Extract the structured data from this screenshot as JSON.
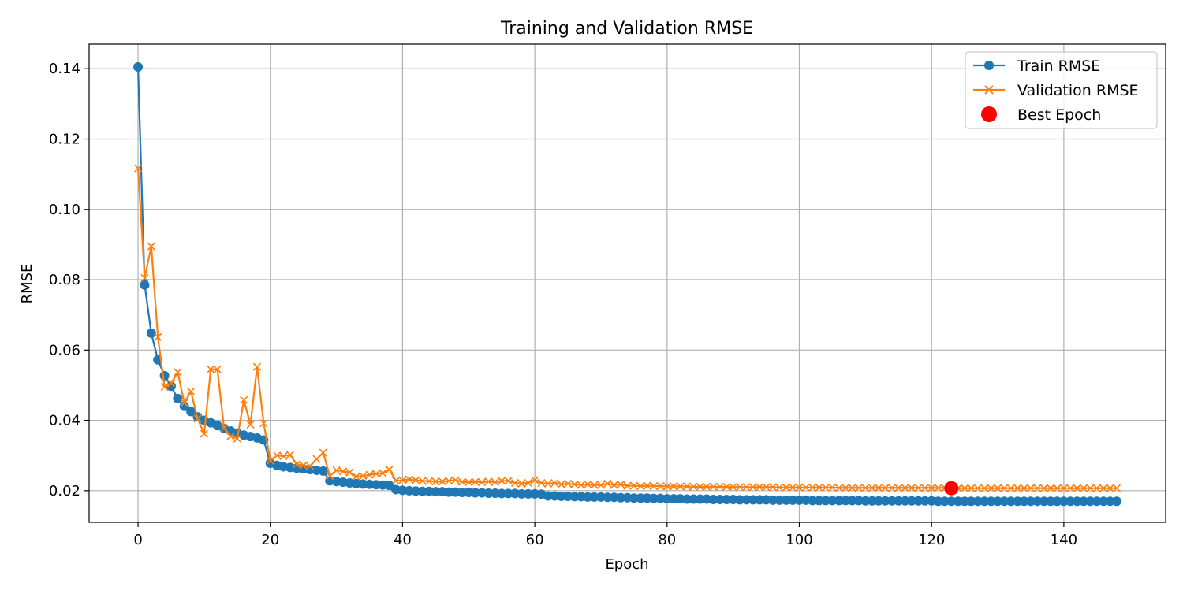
{
  "chart_data": {
    "type": "line",
    "title": "Training and Validation RMSE",
    "xlabel": "Epoch",
    "ylabel": "RMSE",
    "xlim": [
      -7.4,
      155.4
    ],
    "ylim": [
      0.011,
      0.147
    ],
    "xticks": [
      0,
      20,
      40,
      60,
      80,
      100,
      120,
      140
    ],
    "yticks": [
      0.02,
      0.04,
      0.06,
      0.08,
      0.1,
      0.12,
      0.14
    ],
    "xtick_labels": [
      "0",
      "20",
      "40",
      "60",
      "80",
      "100",
      "120",
      "140"
    ],
    "ytick_labels": [
      "0.02",
      "0.04",
      "0.06",
      "0.08",
      "0.10",
      "0.12",
      "0.14"
    ],
    "grid": true,
    "legend_position": "top-right",
    "series": [
      {
        "name": "Train RMSE",
        "color": "#1f77b4",
        "marker": "circle",
        "x": [
          0,
          1,
          2,
          3,
          4,
          5,
          6,
          7,
          8,
          9,
          10,
          11,
          12,
          13,
          14,
          15,
          16,
          17,
          18,
          19,
          20,
          21,
          22,
          23,
          24,
          25,
          26,
          27,
          28,
          29,
          30,
          31,
          32,
          33,
          34,
          35,
          36,
          37,
          38,
          39,
          40,
          41,
          42,
          43,
          44,
          45,
          46,
          47,
          48,
          49,
          50,
          51,
          52,
          53,
          54,
          55,
          56,
          57,
          58,
          59,
          60,
          61,
          62,
          63,
          64,
          65,
          66,
          67,
          68,
          69,
          70,
          71,
          72,
          73,
          74,
          75,
          76,
          77,
          78,
          79,
          80,
          81,
          82,
          83,
          84,
          85,
          86,
          87,
          88,
          89,
          90,
          91,
          92,
          93,
          94,
          95,
          96,
          97,
          98,
          99,
          100,
          101,
          102,
          103,
          104,
          105,
          106,
          107,
          108,
          109,
          110,
          111,
          112,
          113,
          114,
          115,
          116,
          117,
          118,
          119,
          120,
          121,
          122,
          123,
          124,
          125,
          126,
          127,
          128,
          129,
          130,
          131,
          132,
          133,
          134,
          135,
          136,
          137,
          138,
          139,
          140,
          141,
          142,
          143,
          144,
          145,
          146,
          147,
          148
        ],
        "values": [
          0.1405,
          0.0785,
          0.0648,
          0.0572,
          0.0527,
          0.0497,
          0.0462,
          0.044,
          0.0425,
          0.041,
          0.04,
          0.0393,
          0.0385,
          0.0377,
          0.037,
          0.0364,
          0.0358,
          0.0354,
          0.035,
          0.0344,
          0.0278,
          0.0272,
          0.0268,
          0.0266,
          0.0264,
          0.0262,
          0.026,
          0.0258,
          0.0256,
          0.0228,
          0.0226,
          0.0224,
          0.0222,
          0.022,
          0.0219,
          0.0218,
          0.0217,
          0.0216,
          0.0215,
          0.0203,
          0.0201,
          0.02,
          0.0199,
          0.0198,
          0.0198,
          0.0197,
          0.0197,
          0.0196,
          0.0196,
          0.0195,
          0.0195,
          0.0194,
          0.0194,
          0.0193,
          0.0193,
          0.0192,
          0.0192,
          0.0192,
          0.0191,
          0.0191,
          0.0191,
          0.019,
          0.0185,
          0.0185,
          0.0184,
          0.0184,
          0.0183,
          0.0183,
          0.0182,
          0.0182,
          0.0182,
          0.0181,
          0.0181,
          0.018,
          0.018,
          0.0179,
          0.0179,
          0.0179,
          0.0178,
          0.0178,
          0.0177,
          0.0177,
          0.0177,
          0.0176,
          0.0176,
          0.0176,
          0.0176,
          0.0175,
          0.0175,
          0.0175,
          0.0175,
          0.0174,
          0.0174,
          0.0174,
          0.0174,
          0.0174,
          0.0173,
          0.0173,
          0.0173,
          0.0173,
          0.0173,
          0.0173,
          0.0172,
          0.0172,
          0.0172,
          0.0172,
          0.0172,
          0.0172,
          0.0172,
          0.0172,
          0.0171,
          0.0171,
          0.0171,
          0.0171,
          0.0171,
          0.0171,
          0.0171,
          0.0171,
          0.0171,
          0.0171,
          0.0171,
          0.017,
          0.017,
          0.017,
          0.017,
          0.017,
          0.017,
          0.017,
          0.017,
          0.017,
          0.017,
          0.017,
          0.017,
          0.017,
          0.017,
          0.017,
          0.017,
          0.017,
          0.017,
          0.017,
          0.017,
          0.017,
          0.017,
          0.017,
          0.017,
          0.017,
          0.017,
          0.017,
          0.017
        ]
      },
      {
        "name": "Validation RMSE",
        "color": "#ff7f0e",
        "marker": "x",
        "x": [
          0,
          1,
          2,
          3,
          4,
          5,
          6,
          7,
          8,
          9,
          10,
          11,
          12,
          13,
          14,
          15,
          16,
          17,
          18,
          19,
          20,
          21,
          22,
          23,
          24,
          25,
          26,
          27,
          28,
          29,
          30,
          31,
          32,
          33,
          34,
          35,
          36,
          37,
          38,
          39,
          40,
          41,
          42,
          43,
          44,
          45,
          46,
          47,
          48,
          49,
          50,
          51,
          52,
          53,
          54,
          55,
          56,
          57,
          58,
          59,
          60,
          61,
          62,
          63,
          64,
          65,
          66,
          67,
          68,
          69,
          70,
          71,
          72,
          73,
          74,
          75,
          76,
          77,
          78,
          79,
          80,
          81,
          82,
          83,
          84,
          85,
          86,
          87,
          88,
          89,
          90,
          91,
          92,
          93,
          94,
          95,
          96,
          97,
          98,
          99,
          100,
          101,
          102,
          103,
          104,
          105,
          106,
          107,
          108,
          109,
          110,
          111,
          112,
          113,
          114,
          115,
          116,
          117,
          118,
          119,
          120,
          121,
          122,
          123,
          124,
          125,
          126,
          127,
          128,
          129,
          130,
          131,
          132,
          133,
          134,
          135,
          136,
          137,
          138,
          139,
          140,
          141,
          142,
          143,
          144,
          145,
          146,
          147,
          148
        ],
        "values": [
          0.1117,
          0.0805,
          0.0895,
          0.0637,
          0.0495,
          0.0505,
          0.0537,
          0.045,
          0.0482,
          0.0405,
          0.0362,
          0.0545,
          0.0545,
          0.0378,
          0.0355,
          0.0348,
          0.0458,
          0.0388,
          0.0552,
          0.0392,
          0.0285,
          0.03,
          0.0298,
          0.0302,
          0.0275,
          0.0272,
          0.027,
          0.029,
          0.0308,
          0.0242,
          0.0258,
          0.0255,
          0.0252,
          0.024,
          0.0242,
          0.0245,
          0.0248,
          0.025,
          0.026,
          0.0228,
          0.023,
          0.0232,
          0.023,
          0.0228,
          0.0227,
          0.0226,
          0.0226,
          0.0228,
          0.023,
          0.0225,
          0.0224,
          0.0225,
          0.0224,
          0.0226,
          0.0224,
          0.0228,
          0.0228,
          0.0222,
          0.022,
          0.0222,
          0.023,
          0.0222,
          0.022,
          0.0222,
          0.0218,
          0.022,
          0.0218,
          0.0216,
          0.0218,
          0.0216,
          0.0216,
          0.022,
          0.0216,
          0.0218,
          0.0214,
          0.0214,
          0.0213,
          0.0214,
          0.0213,
          0.0213,
          0.0212,
          0.0212,
          0.0212,
          0.0212,
          0.0211,
          0.0211,
          0.0211,
          0.0211,
          0.0211,
          0.0211,
          0.021,
          0.021,
          0.021,
          0.021,
          0.021,
          0.021,
          0.021,
          0.0209,
          0.0209,
          0.0209,
          0.0209,
          0.0209,
          0.0209,
          0.0209,
          0.0209,
          0.0209,
          0.0208,
          0.0208,
          0.0208,
          0.0208,
          0.0208,
          0.0208,
          0.0208,
          0.0208,
          0.0208,
          0.0208,
          0.0208,
          0.0208,
          0.0208,
          0.0208,
          0.0208,
          0.0208,
          0.0208,
          0.0207,
          0.0207,
          0.0207,
          0.0207,
          0.0207,
          0.0207,
          0.0207,
          0.0207,
          0.0207,
          0.0207,
          0.0207,
          0.0207,
          0.0207,
          0.0207,
          0.0207,
          0.0207,
          0.0207,
          0.0207,
          0.0207,
          0.0207,
          0.0207,
          0.0207,
          0.0207,
          0.0207,
          0.0207,
          0.0207
        ]
      }
    ],
    "best_point": {
      "name": "Best Epoch",
      "color": "#ff0000",
      "x": 123,
      "y": 0.0207
    }
  }
}
